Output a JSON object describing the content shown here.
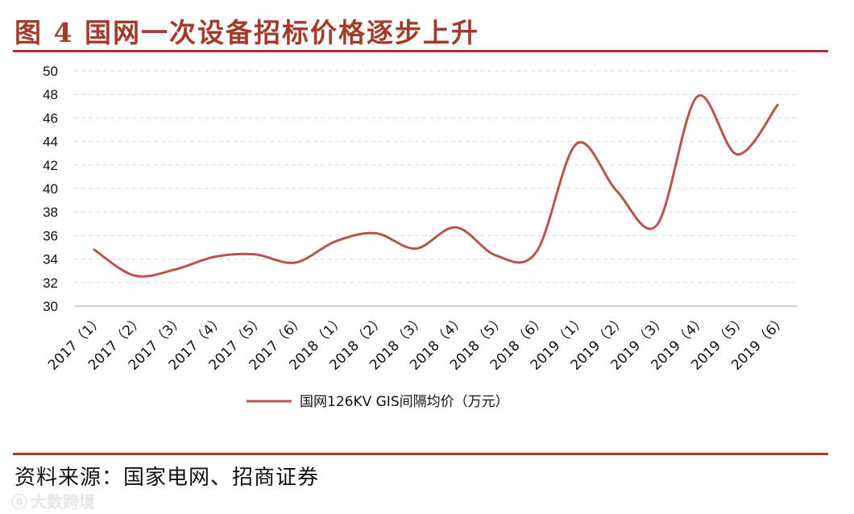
{
  "figure": {
    "title": "图 4  国网一次设备招标价格逐步上升",
    "source": "资料来源：国家电网、招商证券",
    "watermark": "大数跨境",
    "watermark_icon": "logo-icon"
  },
  "colors": {
    "accent": "#a23b2c",
    "series": "#b85450",
    "grid": "#d9d9d9",
    "axis": "#bfbfbf",
    "text": "#111111"
  },
  "chart_data": {
    "type": "line",
    "smooth": true,
    "x": [
      "2017（1）",
      "2017（2）",
      "2017（3）",
      "2017（4）",
      "2017（5）",
      "2017（6）",
      "2018（1）",
      "2018（2）",
      "2018（3）",
      "2018（4）",
      "2018（5）",
      "2018（6）",
      "2019（1）",
      "2019（2）",
      "2019（3）",
      "2019（4）",
      "2019（5）",
      "2019（6）"
    ],
    "series": [
      {
        "name": "国网126KV GIS间隔均价（万元）",
        "values": [
          34.8,
          32.6,
          33.1,
          34.2,
          34.4,
          33.7,
          35.5,
          36.2,
          34.9,
          36.7,
          34.3,
          34.6,
          43.8,
          39.8,
          36.9,
          47.8,
          42.9,
          47.1
        ]
      }
    ],
    "ylim": [
      30,
      50
    ],
    "yticks": [
      "30",
      "32",
      "34",
      "36",
      "38",
      "40",
      "42",
      "44",
      "46",
      "48",
      "50"
    ],
    "grid": "horizontal-dashed",
    "legend": "bottom-center",
    "xlabel": "",
    "ylabel": ""
  }
}
